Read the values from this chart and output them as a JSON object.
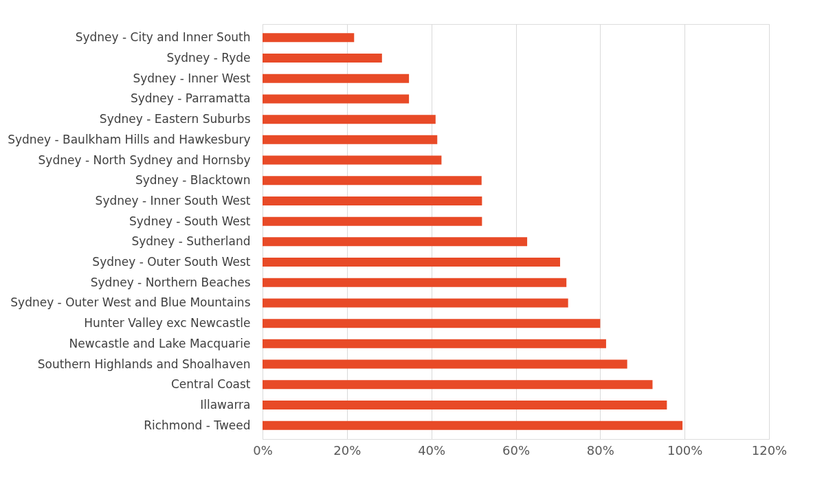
{
  "chart_data": {
    "type": "bar",
    "orientation": "horizontal",
    "categories": [
      "Sydney - City and Inner South",
      "Sydney - Ryde",
      "Sydney - Inner West",
      "Sydney - Parramatta",
      "Sydney - Eastern Suburbs",
      "Sydney - Baulkham Hills and Hawkesbury",
      "Sydney - North Sydney and Hornsby",
      "Sydney - Blacktown",
      "Sydney - Inner South West",
      "Sydney - South West",
      "Sydney - Sutherland",
      "Sydney - Outer South West",
      "Sydney - Northern Beaches",
      "Sydney - Outer West and Blue Mountains",
      "Hunter Valley exc Newcastle",
      "Newcastle and Lake Macquarie",
      "Southern Highlands and Shoalhaven",
      "Central Coast",
      "Illawarra",
      "Richmond - Tweed"
    ],
    "values": [
      0.217,
      0.283,
      0.347,
      0.347,
      0.41,
      0.414,
      0.424,
      0.519,
      0.52,
      0.52,
      0.627,
      0.705,
      0.72,
      0.724,
      0.8,
      0.814,
      0.864,
      0.924,
      0.958,
      0.995
    ],
    "color": "#e84a27",
    "xlim": [
      0,
      1.2
    ],
    "xticks": [
      {
        "value": 0,
        "label": "0%"
      },
      {
        "value": 0.2,
        "label": "20%"
      },
      {
        "value": 0.4,
        "label": "40%"
      },
      {
        "value": 0.6,
        "label": "60%"
      },
      {
        "value": 0.8,
        "label": "80%"
      },
      {
        "value": 1.0,
        "label": "100%"
      },
      {
        "value": 1.2,
        "label": "120%"
      }
    ],
    "grid": "x"
  }
}
